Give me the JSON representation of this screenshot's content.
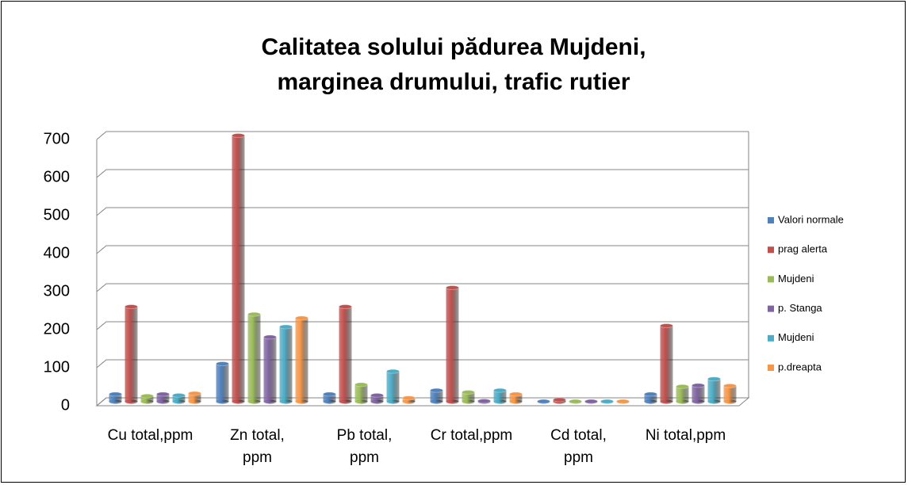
{
  "chart_data": {
    "type": "bar",
    "title": "Calitatea solului pădurea Mujdeni, marginea drumului, trafic rutier",
    "categories": [
      "Cu total,ppm",
      "Zn total, ppm",
      "Pb total, ppm",
      "Cr total,ppm",
      "Cd total, ppm",
      "Ni total,ppm"
    ],
    "series": [
      {
        "name": "Valori normale",
        "color": "#4f81bd",
        "values": [
          20,
          100,
          20,
          30,
          1,
          20
        ]
      },
      {
        "name": "prag alerta",
        "color": "#c0504d",
        "values": [
          250,
          700,
          250,
          300,
          5,
          200
        ]
      },
      {
        "name": "Mujdeni",
        "color": "#9bbb59",
        "values": [
          15,
          230,
          45,
          25,
          1,
          40
        ]
      },
      {
        "name": "p. Stanga",
        "color": "#8064a2",
        "values": [
          20,
          170,
          17,
          2,
          1,
          43
        ]
      },
      {
        "name": "Mujdeni",
        "color": "#4bacc6",
        "values": [
          17,
          197,
          80,
          30,
          1,
          60
        ]
      },
      {
        "name": "p.dreapta",
        "color": "#f79646",
        "values": [
          22,
          220,
          10,
          20,
          1,
          42
        ]
      }
    ],
    "ylim": [
      0,
      700
    ],
    "yticks": [
      0,
      100,
      200,
      300,
      400,
      500,
      600,
      700
    ],
    "grid": true,
    "legend": "right"
  }
}
